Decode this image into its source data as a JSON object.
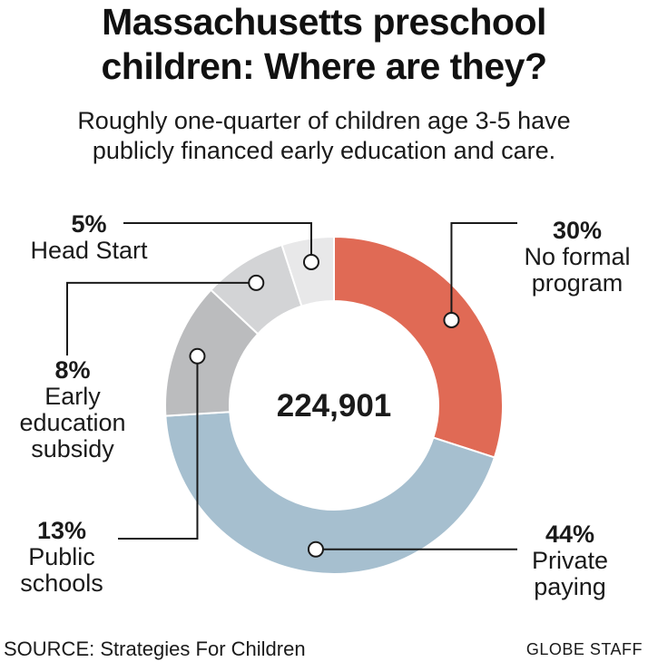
{
  "title_lines": [
    "Massachusetts preschool",
    "children: Where are they?"
  ],
  "subtitle_lines": [
    "Roughly one-quarter of children age 3-5 have",
    "publicly financed early education and care."
  ],
  "center_total": "224,901",
  "source": "SOURCE: Strategies For Children",
  "credit": "GLOBE STAFF",
  "chart_data": {
    "type": "pie",
    "variant": "donut",
    "total": 224901,
    "series": [
      {
        "name": "No formal program",
        "value": 30,
        "label_pct": "30%",
        "label_lines": [
          "No formal",
          "program"
        ],
        "color": "#e06a55"
      },
      {
        "name": "Private paying",
        "value": 44,
        "label_pct": "44%",
        "label_lines": [
          "Private",
          "paying"
        ],
        "color": "#a6bfcf"
      },
      {
        "name": "Public schools",
        "value": 13,
        "label_pct": "13%",
        "label_lines": [
          "Public",
          "schools"
        ],
        "color": "#bbbcbe"
      },
      {
        "name": "Early education subsidy",
        "value": 8,
        "label_pct": "8%",
        "label_lines": [
          "Early",
          "education",
          "subsidy"
        ],
        "color": "#d3d4d6"
      },
      {
        "name": "Head Start",
        "value": 5,
        "label_pct": "5%",
        "label_lines": [
          "Head Start"
        ],
        "color": "#e8e8e9"
      }
    ]
  }
}
